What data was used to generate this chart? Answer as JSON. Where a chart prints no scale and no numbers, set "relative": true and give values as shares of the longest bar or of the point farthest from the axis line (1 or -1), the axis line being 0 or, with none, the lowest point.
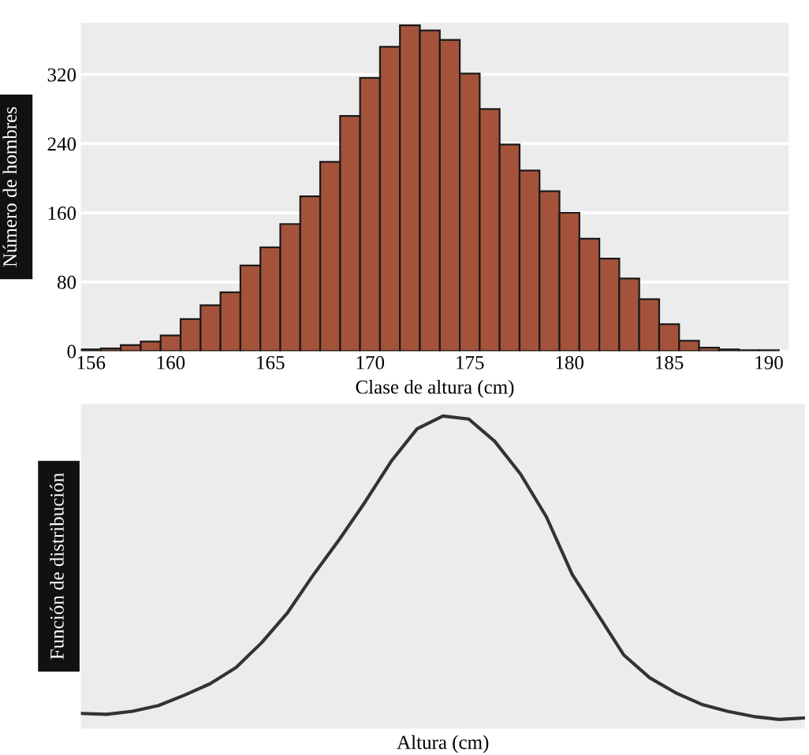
{
  "chart_data": [
    {
      "type": "histogram",
      "xlabel": "Clase de altura (cm)",
      "ylabel": "Número de hombres",
      "color": "#a4533a",
      "bins": [
        155.5,
        156.5,
        157.5,
        158.5,
        159.5,
        160.5,
        161.5,
        162.5,
        163.5,
        164.5,
        165.5,
        166.5,
        167.5,
        168.5,
        169.5,
        170.5,
        171.5,
        172.5,
        173.5,
        174.5,
        175.5,
        176.5,
        177.5,
        178.5,
        179.5,
        180.5,
        181.5,
        182.5,
        183.5,
        184.5,
        185.5,
        186.5,
        187.5,
        188.5,
        189.5,
        190.5
      ],
      "values": [
        2,
        3,
        7,
        11,
        18,
        37,
        53,
        68,
        99,
        120,
        147,
        179,
        219,
        272,
        316,
        352,
        377,
        371,
        360,
        321,
        280,
        239,
        209,
        185,
        160,
        130,
        107,
        84,
        60,
        31,
        12,
        4,
        2,
        1,
        1
      ],
      "xlim": [
        155.5,
        191
      ],
      "xticks": [
        156,
        160,
        165,
        170,
        175,
        180,
        185,
        190
      ],
      "ylim": [
        0,
        380
      ],
      "yticks": [
        0,
        80,
        160,
        240,
        320
      ],
      "grid": "y"
    },
    {
      "type": "line",
      "xlabel": "Altura (cm)",
      "ylabel": "Función de distribución",
      "relative": true,
      "color": "#333333",
      "categories": [
        null,
        null,
        null,
        null,
        null,
        null,
        null,
        null,
        null,
        null,
        null,
        null,
        null,
        null,
        null,
        null,
        null,
        null,
        null,
        null,
        null,
        null,
        null,
        null,
        null,
        null,
        null,
        null,
        null
      ],
      "values": [
        0.02,
        0.017,
        0.027,
        0.046,
        0.08,
        0.118,
        0.171,
        0.254,
        0.353,
        0.478,
        0.594,
        0.718,
        0.851,
        0.958,
        1.0,
        0.99,
        0.917,
        0.809,
        0.668,
        0.478,
        0.345,
        0.212,
        0.137,
        0.088,
        0.05,
        0.027,
        0.01,
        0.0,
        0.005
      ]
    }
  ]
}
